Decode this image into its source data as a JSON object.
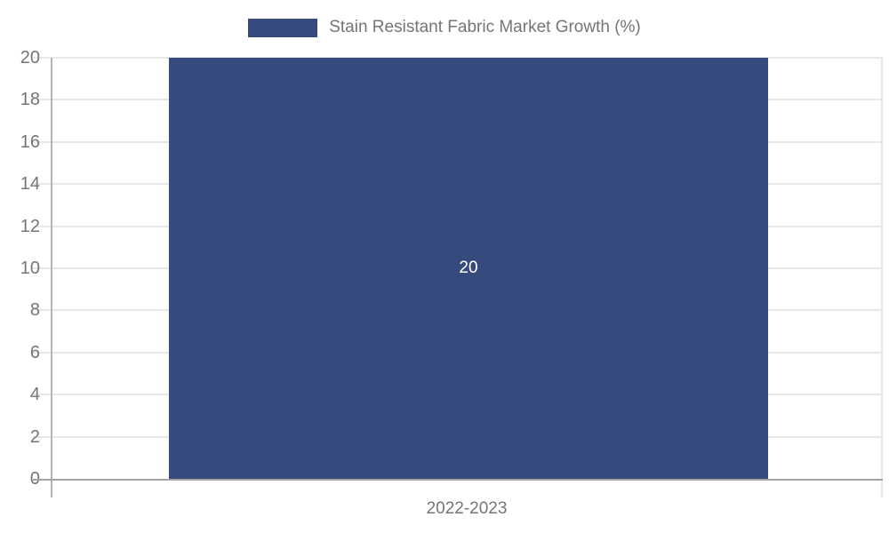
{
  "chart_data": {
    "type": "bar",
    "categories": [
      "2022-2023"
    ],
    "series": [
      {
        "name": "Stain Resistant Fabric Market Growth (%)",
        "values": [
          20
        ]
      }
    ],
    "data_labels": [
      20
    ],
    "legend": {
      "position": "top",
      "label": "Stain Resistant Fabric Market Growth (%)"
    },
    "xlabel": "",
    "ylabel": "",
    "ylim": [
      0,
      20
    ],
    "ytick_step": 2,
    "grid": true,
    "colors": {
      "bar": "#364A7E",
      "bar_label": "#FFFFFF",
      "tick_text": "#757575",
      "axis_line": "#A3A3A3",
      "gridline": "#E7E7E7",
      "background": "#FFFFFF"
    }
  }
}
